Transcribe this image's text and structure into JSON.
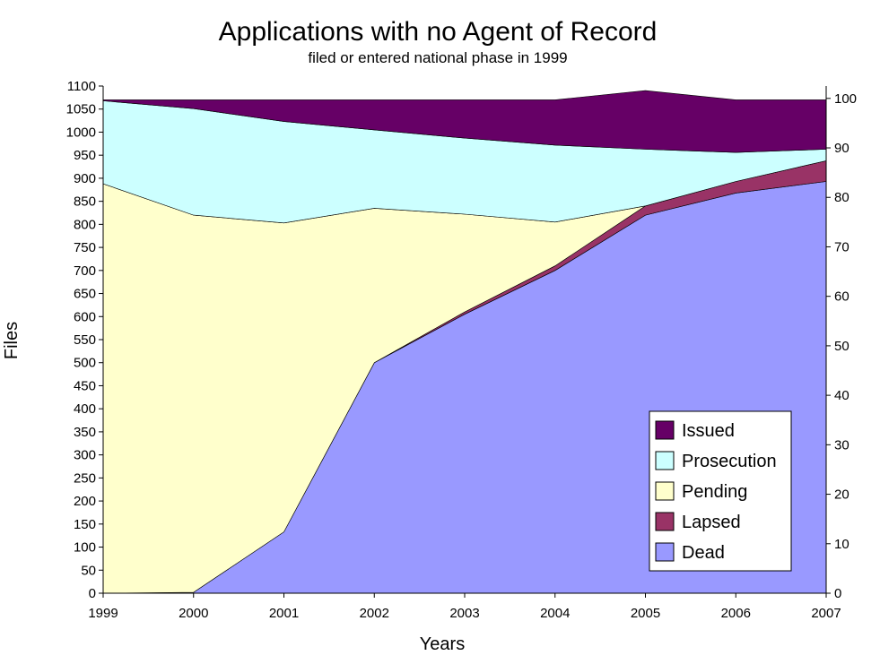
{
  "chart_data": {
    "type": "area",
    "title": "Applications with no Agent of Record",
    "subtitle": "filed or entered national phase in 1999",
    "xlabel": "Years",
    "ylabel": "Files",
    "x": [
      "1999",
      "2000",
      "2001",
      "2002",
      "2003",
      "2004",
      "2005",
      "2006",
      "2007"
    ],
    "ylim": [
      0,
      1100
    ],
    "y_ticks": [
      "0",
      "50",
      "100",
      "150",
      "200",
      "250",
      "300",
      "350",
      "400",
      "450",
      "500",
      "550",
      "600",
      "650",
      "700",
      "750",
      "800",
      "850",
      "900",
      "950",
      "1000",
      "1050",
      "1100"
    ],
    "y2lim": [
      0,
      102.5
    ],
    "y2_ticks": [
      "0",
      "10",
      "20",
      "30",
      "40",
      "50",
      "60",
      "70",
      "80",
      "90",
      "100"
    ],
    "stacked": true,
    "series": [
      {
        "name": "Dead",
        "color": "#9999ff",
        "values": [
          0,
          2,
          133,
          500,
          605,
          700,
          820,
          868,
          893
        ]
      },
      {
        "name": "Lapsed",
        "color": "#993366",
        "values": [
          0,
          0,
          0,
          0,
          5,
          10,
          20,
          25,
          45
        ]
      },
      {
        "name": "Pending",
        "color": "#ffffcc",
        "values": [
          888,
          818,
          670,
          335,
          212,
          95,
          0,
          0,
          0
        ]
      },
      {
        "name": "Prosecution",
        "color": "#ccffff",
        "values": [
          180,
          231,
          220,
          170,
          165,
          167,
          123,
          63,
          25
        ]
      },
      {
        "name": "Issued",
        "color": "#660066",
        "values": [
          2,
          19,
          47,
          65,
          83,
          98,
          127,
          114,
          107
        ]
      }
    ],
    "legend": {
      "position": "bottom-right",
      "order": [
        "Issued",
        "Prosecution",
        "Pending",
        "Lapsed",
        "Dead"
      ]
    },
    "grid": false
  }
}
